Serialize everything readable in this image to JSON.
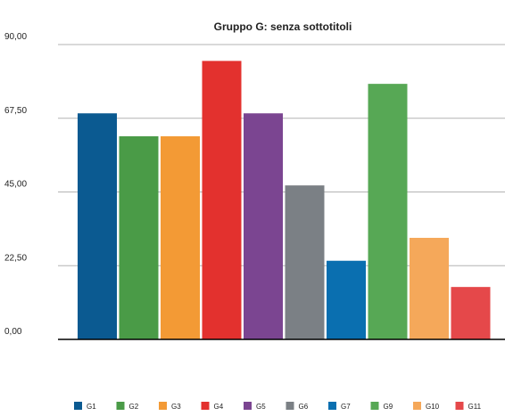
{
  "chart_data": {
    "type": "bar",
    "title": "Gruppo G: senza sottotitoli",
    "xlabel": "",
    "ylabel": "",
    "ylim": [
      0,
      90
    ],
    "yticks": [
      "0,00",
      "22,50",
      "45,00",
      "67,50",
      "90,00"
    ],
    "ytick_values": [
      0,
      22.5,
      45,
      67.5,
      90
    ],
    "grid": true,
    "legend": "bottom",
    "series": [
      {
        "name": "G1",
        "value": 69,
        "color": "#0b5a91"
      },
      {
        "name": "G2",
        "value": 62,
        "color": "#4a9b47"
      },
      {
        "name": "G3",
        "value": 62,
        "color": "#f39a35"
      },
      {
        "name": "G4",
        "value": 85,
        "color": "#e3312e"
      },
      {
        "name": "G5",
        "value": 69,
        "color": "#7b4591"
      },
      {
        "name": "G6",
        "value": 47,
        "color": "#7b8085"
      },
      {
        "name": "G7",
        "value": 24,
        "color": "#0a6fb0"
      },
      {
        "name": "G9",
        "value": 78,
        "color": "#57a855"
      },
      {
        "name": "G10",
        "value": 31,
        "color": "#f5a85a"
      },
      {
        "name": "G11",
        "value": 16,
        "color": "#e5484a"
      }
    ]
  }
}
